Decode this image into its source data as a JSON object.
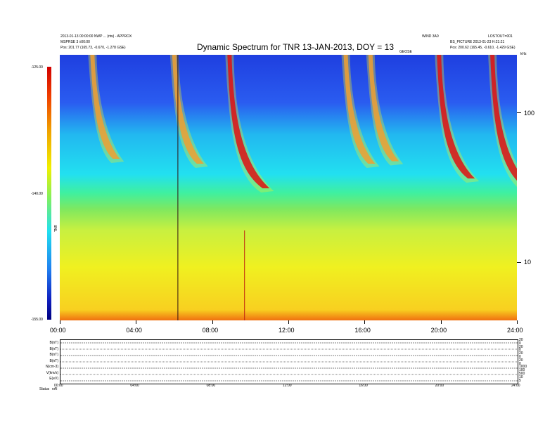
{
  "header": {
    "title": "Dynamic Spectrum for TNR 13-JAN-2013, DOY = 13",
    "top_left_line1": "2013-01-13 00:00:00 NWP ... (rtw) - APPROX",
    "top_left_line2": "MSPRSE 3 ±00:00",
    "top_left_line3": "Pos: 201.77 (165.73, -0.670, -1.278 GSE)",
    "top_center_right": "WIND 3A0",
    "top_right_line1": "LOSTOUT=001",
    "top_right_line2": "BS_PICTURE 2013-01-23 H:21:21",
    "top_right_line3": "Pos: 200.62 (165.45, -0.610, -1.429 GSE)",
    "corner_label": "kHz",
    "mid_label": "GEOSE"
  },
  "colorbar": {
    "label": "TNR",
    "ticks": [
      "-125.00",
      "-140.00",
      "-155.00"
    ]
  },
  "chart_data": {
    "type": "heatmap",
    "title": "Dynamic Spectrum for TNR 13-JAN-2013, DOY = 13",
    "x_ticks": [
      "00:00",
      "04:00",
      "08:00",
      "12:00",
      "16:00",
      "20:00",
      "24:00"
    ],
    "y_right_ticks": [
      "100",
      "10"
    ],
    "y_scale": "log",
    "colorbar_range": [
      -155.0,
      -125.0
    ],
    "features": [
      {
        "name": "type III burst",
        "start_hour": 1.6
      },
      {
        "name": "type III burst",
        "start_hour": 5.9
      },
      {
        "name": "type III burst",
        "start_hour": 8.8
      },
      {
        "name": "type III burst",
        "start_hour": 14.9
      },
      {
        "name": "type III burst",
        "start_hour": 16.2
      },
      {
        "name": "type III burst",
        "start_hour": 19.8
      },
      {
        "name": "type III burst",
        "start_hour": 22.6
      }
    ],
    "bursts": [
      {
        "x_hour": 1.6,
        "strength": 0.4
      },
      {
        "x_hour": 5.9,
        "strength": 0.5
      },
      {
        "x_hour": 8.8,
        "strength": 1.0
      },
      {
        "x_hour": 14.9,
        "strength": 0.5
      },
      {
        "x_hour": 16.2,
        "strength": 0.45
      },
      {
        "x_hour": 19.8,
        "strength": 0.8
      },
      {
        "x_hour": 22.6,
        "strength": 1.0
      }
    ]
  },
  "bottom_panel": {
    "rows": [
      "B(nT)",
      "B(nT)",
      "B(nT)",
      "B(nT)",
      "N(cm-3)",
      "V(km/s)",
      "E(eV)"
    ],
    "right_ticks": [
      "20",
      "0",
      "20",
      "0",
      "20",
      "0",
      "20",
      "0",
      "1000",
      "100",
      "500",
      "10",
      "5"
    ],
    "x_ticks": [
      "00:00",
      "04:00",
      "08:00",
      "12:00",
      "16:00",
      "20:00",
      "24:00"
    ],
    "footer_left": "Status",
    "footer_value": "nAI"
  }
}
